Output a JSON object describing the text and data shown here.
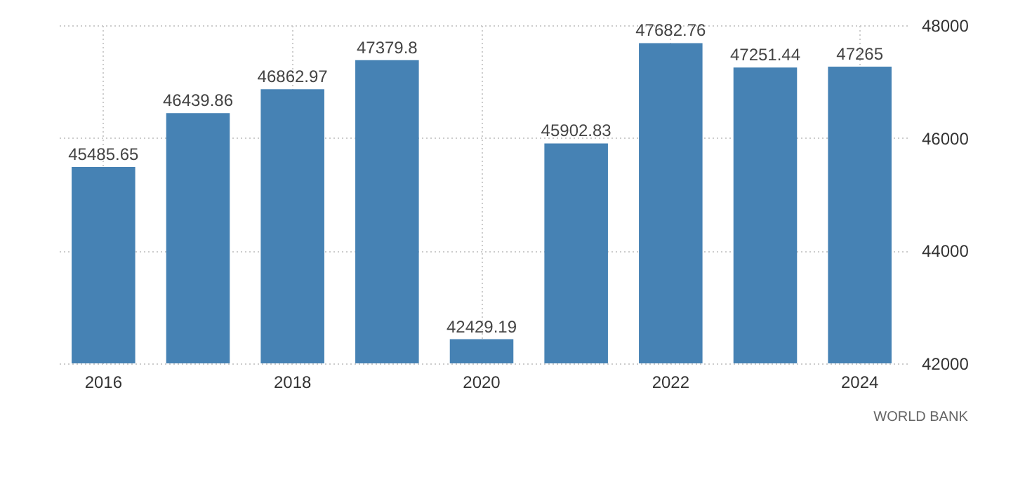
{
  "chart_data": {
    "type": "bar",
    "categories": [
      "2016",
      null,
      "2018",
      null,
      "2020",
      null,
      "2022",
      null,
      "2024"
    ],
    "values": [
      45485.65,
      46439.86,
      46862.97,
      47379.8,
      42429.19,
      45902.83,
      47682.76,
      47251.44,
      47265
    ],
    "color": "#4682b4",
    "ylim": [
      42000,
      48000
    ],
    "yticks": [
      42000,
      44000,
      46000,
      48000
    ],
    "grid": true,
    "data_labels": true,
    "annotations": [
      "WORLD BANK"
    ]
  }
}
